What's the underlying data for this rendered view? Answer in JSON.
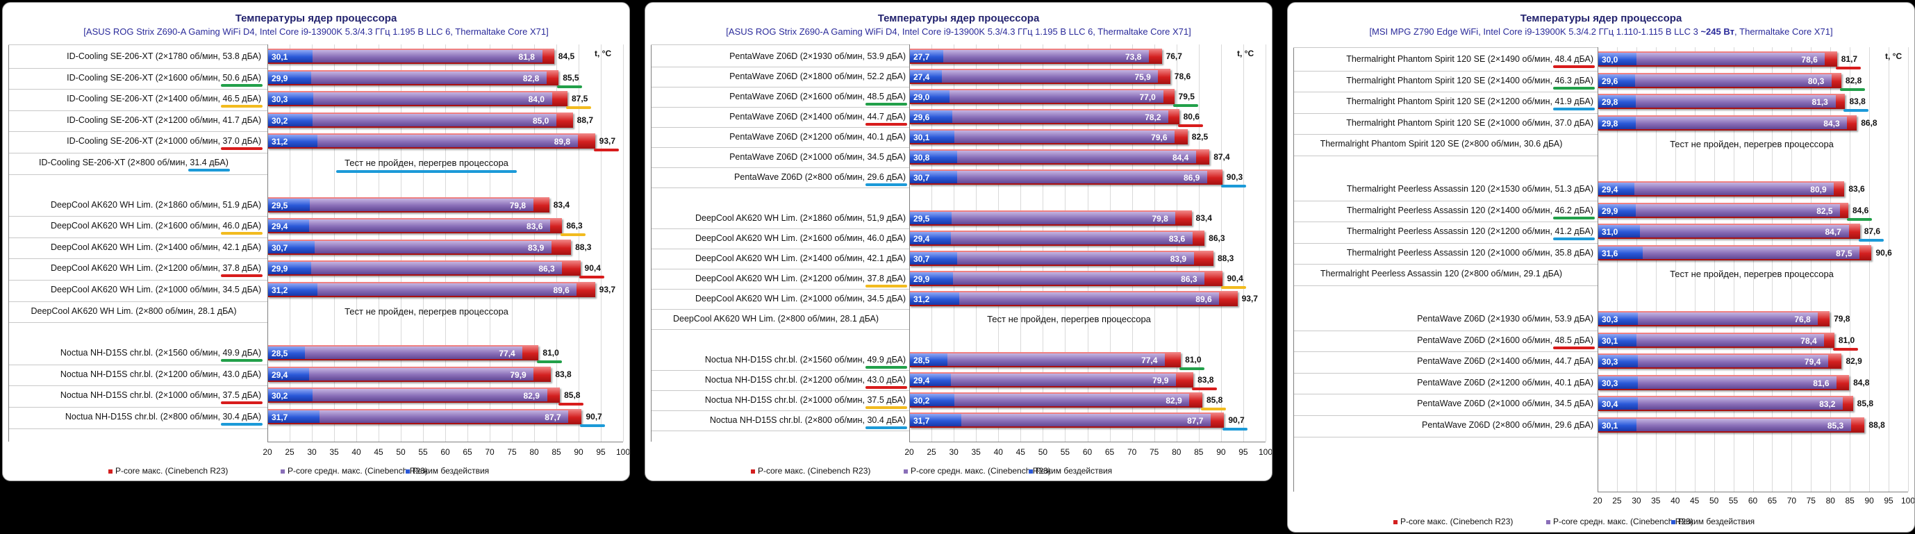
{
  "colors": {
    "red": "#d32020",
    "purple": "#8a6fb8",
    "blue": "#2a58d8",
    "green": "#22a04a",
    "yellow": "#f2bb1f",
    "cyan": "#1c9ad8",
    "uline_red": "#d81c1c"
  },
  "chart_data": [
    {
      "type": "bar",
      "title": "Температуры ядер процессора",
      "subtitle": "[ASUS ROG Strix Z690-A Gaming WiFi D4, Intel Core i9-13900K 5.3/4.3 ГГц 1.195 В LLC 6, Thermaltake Core X71]",
      "unit": "t, °C",
      "xlim": [
        20,
        100
      ],
      "ticks": [
        "20",
        "25",
        "30",
        "35",
        "40",
        "45",
        "50",
        "55",
        "60",
        "65",
        "70",
        "75",
        "80",
        "85",
        "90",
        "95",
        "100"
      ],
      "legend": [
        "P-core макс. (Cinebench R23)",
        "P-core средн. макс. (Cinebench R23)",
        "Режим бездействия"
      ],
      "rows": [
        {
          "pre": "ID-Cooling SE-206-XT (2×1780 об/мин, ",
          "hl": "53.8 дБА)",
          "line": "",
          "idle": 30.1,
          "avg": 81.8,
          "max": 84.5
        },
        {
          "pre": "ID-Cooling SE-206-XT (2×1600 об/мин, ",
          "hl": "50.6 дБА)",
          "line": "green",
          "idle": 29.9,
          "avg": 82.8,
          "max": 85.5
        },
        {
          "pre": "ID-Cooling SE-206-XT (2×1400 об/мин, ",
          "hl": "46.5 дБА)",
          "line": "yellow",
          "idle": 30.3,
          "avg": 84.0,
          "max": 87.5
        },
        {
          "pre": "ID-Cooling SE-206-XT (2×1200 об/мин, ",
          "hl": "41.7 дБА)",
          "line": "",
          "idle": 30.2,
          "avg": 85.0,
          "max": 88.7
        },
        {
          "pre": "ID-Cooling SE-206-XT (2×1000 об/мин, ",
          "hl": "37.0 дБА)",
          "line": "red",
          "idle": 31.2,
          "avg": 89.8,
          "max": 93.7
        },
        {
          "pre": "ID-Cooling SE-206-XT (2×800 об/мин, ",
          "hl": "31.4 дБА)",
          "line": "cyan",
          "fail": true,
          "note": "Тест не пройден, перегрев процессора"
        },
        {
          "gap": true
        },
        {
          "pre": "DeepCool AK620 WH Lim. (2×1860 об/мин, ",
          "hl": "51.9 дБА)",
          "line": "",
          "idle": 29.5,
          "avg": 79.8,
          "max": 83.4
        },
        {
          "pre": "DeepCool AK620 WH Lim. (2×1600 об/мин, ",
          "hl": "46.0 дБА)",
          "line": "yellow",
          "idle": 29.4,
          "avg": 83.6,
          "max": 86.3
        },
        {
          "pre": "DeepCool AK620 WH Lim. (2×1400 об/мин, ",
          "hl": "42.1 дБА)",
          "line": "",
          "idle": 30.7,
          "avg": 83.9,
          "max": 88.3
        },
        {
          "pre": "DeepCool AK620 WH Lim. (2×1200 об/мин, ",
          "hl": "37.8 дБА)",
          "line": "red",
          "idle": 29.9,
          "avg": 86.3,
          "max": 90.4
        },
        {
          "pre": "DeepCool AK620 WH Lim. (2×1000 об/мин, ",
          "hl": "34.5 дБА)",
          "line": "",
          "idle": 31.2,
          "avg": 89.6,
          "max": 93.7
        },
        {
          "pre": "DeepCool AK620 WH Lim. (2×800 об/мин, ",
          "hl": "28.1 дБА)",
          "line": "",
          "fail": true,
          "note": "Тест не пройден, перегрев процессора"
        },
        {
          "gap": true
        },
        {
          "pre": "Noctua NH-D15S chr.bl. (2×1560 об/мин, ",
          "hl": "49.9 дБА)",
          "line": "green",
          "idle": 28.5,
          "avg": 77.4,
          "max": 81.0
        },
        {
          "pre": "Noctua NH-D15S chr.bl. (2×1200 об/мин, ",
          "hl": "43.0 дБА)",
          "line": "",
          "idle": 29.4,
          "avg": 79.9,
          "max": 83.8
        },
        {
          "pre": "Noctua NH-D15S chr.bl. (2×1000 об/мин, ",
          "hl": "37.5 дБА)",
          "line": "red",
          "idle": 30.2,
          "avg": 82.9,
          "max": 85.8
        },
        {
          "pre": "Noctua NH-D15S chr.bl. (2×800 об/мин, ",
          "hl": "30.4 дБА)",
          "line": "cyan",
          "idle": 31.7,
          "avg": 87.7,
          "max": 90.7
        }
      ]
    },
    {
      "type": "bar",
      "title": "Температуры ядер процессора",
      "subtitle": "[ASUS ROG Strix Z690-A Gaming WiFi D4, Intel Core i9-13900K 5.3/4.3 ГГц 1.195 В LLC 6, Thermaltake Core X71]",
      "unit": "t, °C",
      "xlim": [
        20,
        100
      ],
      "ticks": [
        "20",
        "25",
        "30",
        "35",
        "40",
        "45",
        "50",
        "55",
        "60",
        "65",
        "70",
        "75",
        "80",
        "85",
        "90",
        "95",
        "100"
      ],
      "legend": [
        "P-core макс. (Cinebench R23)",
        "P-core средн. макс. (Cinebench R23)",
        "Режим бездействия"
      ],
      "rows": [
        {
          "pre": "PentaWave Z06D (2×1930 об/мин, ",
          "hl": "53.9 дБА)",
          "line": "",
          "idle": 27.7,
          "avg": 73.8,
          "max": 76.7
        },
        {
          "pre": "PentaWave Z06D (2×1800 об/мин, ",
          "hl": "52.2 дБА)",
          "line": "",
          "idle": 27.4,
          "avg": 75.9,
          "max": 78.6
        },
        {
          "pre": "PentaWave Z06D (2×1600 об/мин, ",
          "hl": "48.5 дБА)",
          "line": "green",
          "idle": 29.0,
          "avg": 77.0,
          "max": 79.5
        },
        {
          "pre": "PentaWave Z06D (2×1400 об/мин, ",
          "hl": "44.7 дБА)",
          "line": "red",
          "idle": 29.6,
          "avg": 78.2,
          "max": 80.6
        },
        {
          "pre": "PentaWave Z06D (2×1200 об/мин, ",
          "hl": "40.1 дБА)",
          "line": "",
          "idle": 30.1,
          "avg": 79.6,
          "max": 82.5
        },
        {
          "pre": "PentaWave Z06D (2×1000 об/мин, ",
          "hl": "34.5 дБА)",
          "line": "",
          "idle": 30.8,
          "avg": 84.4,
          "max": 87.4
        },
        {
          "pre": "PentaWave Z06D (2×800 об/мин, ",
          "hl": "29.6 дБА)",
          "line": "cyan",
          "idle": 30.7,
          "avg": 86.9,
          "max": 90.3
        },
        {
          "gap": true
        },
        {
          "pre": "DeepCool AK620 WH Lim. (2×1860 об/мин, ",
          "hl": "51,9 дБА)",
          "line": "",
          "idle": 29.5,
          "avg": 79.8,
          "max": 83.4
        },
        {
          "pre": "DeepCool AK620 WH Lim. (2×1600 об/мин, ",
          "hl": "46.0 дБА)",
          "line": "",
          "idle": 29.4,
          "avg": 83.6,
          "max": 86.3
        },
        {
          "pre": "DeepCool AK620 WH Lim. (2×1400 об/мин, ",
          "hl": "42.1 дБА)",
          "line": "",
          "idle": 30.7,
          "avg": 83.9,
          "max": 88.3
        },
        {
          "pre": "DeepCool AK620 WH Lim. (2×1200 об/мин, ",
          "hl": "37.8 дБА)",
          "line": "yellow",
          "idle": 29.9,
          "avg": 86.3,
          "max": 90.4
        },
        {
          "pre": "DeepCool AK620 WH Lim. (2×1000 об/мин, ",
          "hl": "34.5 дБА)",
          "line": "",
          "idle": 31.2,
          "avg": 89.6,
          "max": 93.7
        },
        {
          "pre": "DeepCool AK620 WH Lim. (2×800 об/мин, ",
          "hl": "28.1 дБА)",
          "line": "",
          "fail": true,
          "note": "Тест не пройден, перегрев процессора"
        },
        {
          "gap": true
        },
        {
          "pre": "Noctua NH-D15S chr.bl. (2×1560 об/мин, ",
          "hl": "49.9 дБА)",
          "line": "green",
          "idle": 28.5,
          "avg": 77.4,
          "max": 81.0
        },
        {
          "pre": "Noctua NH-D15S chr.bl. (2×1200 об/мин, ",
          "hl": "43.0 дБА)",
          "line": "red",
          "idle": 29.4,
          "avg": 79.9,
          "max": 83.8
        },
        {
          "pre": "Noctua NH-D15S chr.bl. (2×1000 об/мин, ",
          "hl": "37.5 дБА)",
          "line": "yellow",
          "idle": 30.2,
          "avg": 82.9,
          "max": 85.8
        },
        {
          "pre": "Noctua NH-D15S chr.bl. (2×800 об/мин, ",
          "hl": "30.4 дБА)",
          "line": "cyan",
          "idle": 31.7,
          "avg": 87.7,
          "max": 90.7
        }
      ]
    },
    {
      "type": "bar",
      "title": "Температуры ядер процессора",
      "subtitle_pre": "[MSI MPG Z790 Edge WiFi, Intel Core i9-13900K 5.3/4.2 ГГц 1.110-1.115 В LLC 3 ",
      "subtitle_bold": "~245 Вт",
      "subtitle_post": ", Thermaltake Core X71]",
      "unit": "t, °C",
      "xlim": [
        20,
        100
      ],
      "ticks": [
        "20",
        "25",
        "30",
        "35",
        "40",
        "45",
        "50",
        "55",
        "60",
        "65",
        "70",
        "75",
        "80",
        "85",
        "90",
        "95",
        "100"
      ],
      "legend": [
        "P-core макс. (Cinebench R23)",
        "P-core средн. макс. (Cinebench R23)",
        "Режим бездействия"
      ],
      "rows": [
        {
          "pre": "Thermalright Phantom Spirit 120 SE (2×1490 об/мин, ",
          "hl": "48.4 дБА)",
          "line": "red",
          "idle": 30.0,
          "avg": 78.6,
          "max": 81.7
        },
        {
          "pre": "Thermalright Phantom Spirit 120 SE (2×1400 об/мин, ",
          "hl": "46.3 дБА)",
          "line": "green",
          "idle": 29.6,
          "avg": 80.3,
          "max": 82.8
        },
        {
          "pre": "Thermalright Phantom Spirit 120 SE (2×1200 об/мин, ",
          "hl": "41.9 дБА)",
          "line": "cyan",
          "idle": 29.8,
          "avg": 81.3,
          "max": 83.8
        },
        {
          "pre": "Thermalright Phantom Spirit 120 SE (2×1000 об/мин, ",
          "hl": "37.0 дБА)",
          "line": "",
          "idle": 29.8,
          "avg": 84.3,
          "max": 86.8
        },
        {
          "pre": "Thermalright Phantom Spirit 120 SE (2×800 об/мин, ",
          "hl": "30.6 дБА)",
          "line": "",
          "fail": true,
          "note": "Тест не пройден, перегрев процессора"
        },
        {
          "gap": true
        },
        {
          "pre": "Thermalright Peerless Assassin 120 (2×1530 об/мин, ",
          "hl": "51.3 дБА)",
          "line": "",
          "idle": 29.4,
          "avg": 80.9,
          "max": 83.6
        },
        {
          "pre": "Thermalright Peerless Assassin 120 (2×1400 об/мин, ",
          "hl": "46.2 дБА)",
          "line": "green",
          "idle": 29.9,
          "avg": 82.5,
          "max": 84.6
        },
        {
          "pre": "Thermalright Peerless Assassin 120 (2×1200 об/мин, ",
          "hl": "41.2 дБА)",
          "line": "cyan",
          "idle": 31.0,
          "avg": 84.7,
          "max": 87.6
        },
        {
          "pre": "Thermalright Peerless Assassin 120 (2×1000 об/мин, ",
          "hl": "35.8 дБА)",
          "line": "",
          "idle": 31.6,
          "avg": 87.5,
          "max": 90.6
        },
        {
          "pre": "Thermalright Peerless Assassin 120 (2×800 об/мин, ",
          "hl": "29.1 дБА)",
          "line": "",
          "fail": true,
          "note": "Тест не пройден, перегрев процессора"
        },
        {
          "gap": true
        },
        {
          "pre": "PentaWave Z06D (2×1930 об/мин, ",
          "hl": "53.9 дБА)",
          "line": "",
          "idle": 30.3,
          "avg": 76.8,
          "max": 79.8
        },
        {
          "pre": "PentaWave Z06D (2×1600 об/мин, ",
          "hl": "48.5 дБА)",
          "line": "red",
          "idle": 30.1,
          "avg": 78.4,
          "max": 81.0
        },
        {
          "pre": "PentaWave Z06D (2×1400 об/мин, ",
          "hl": "44.7 дБА)",
          "line": "",
          "idle": 30.3,
          "avg": 79.4,
          "max": 82.9
        },
        {
          "pre": "PentaWave Z06D (2×1200 об/мин, ",
          "hl": "40.1 дБА)",
          "line": "",
          "idle": 30.3,
          "avg": 81.6,
          "max": 84.8
        },
        {
          "pre": "PentaWave Z06D (2×1000 об/мин, ",
          "hl": "34.5 дБА)",
          "line": "",
          "idle": 30.4,
          "avg": 83.2,
          "max": 85.8
        },
        {
          "pre": "PentaWave Z06D (2×800 об/мин, ",
          "hl": "29.6 дБА)",
          "line": "",
          "idle": 30.1,
          "avg": 85.3,
          "max": 88.8
        }
      ]
    }
  ]
}
